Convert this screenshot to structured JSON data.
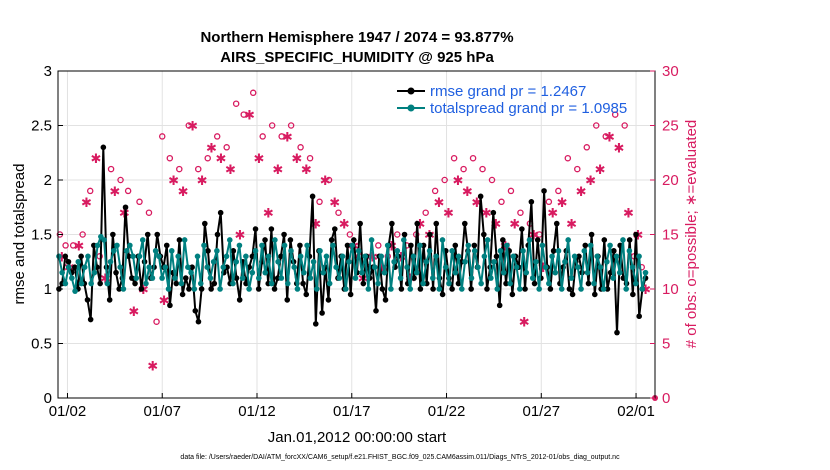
{
  "chart_data": {
    "type": "line",
    "title": "Northern Hemisphere 1947 / 2074 = 93.877%",
    "subtitle": "AIRS_SPECIFIC_HUMIDITY @ 925 hPa",
    "xlabel": "Jan.01,2012 00:00:00 start",
    "ylabel": "rmse and totalspread",
    "y2label": "# of obs: o=possible; ∗=evaluated",
    "footnote": "data file: /Users/raeder/DAI/ATM_forcXX/CAM6_setup/f.e21.FHIST_BGC.f09_025.CAM6assim.011/Diags_NTrS_2012-01/obs_diag_output.nc",
    "xlim": [
      0,
      31.5
    ],
    "ylim": [
      0,
      3
    ],
    "y2lim": [
      0,
      30
    ],
    "x_ticks": [
      0.5,
      5.5,
      10.5,
      15.5,
      20.5,
      25.5,
      30.5
    ],
    "x_ticklabels": [
      "01/02",
      "01/07",
      "01/12",
      "01/17",
      "01/22",
      "01/27",
      "02/01"
    ],
    "y_ticks": [
      0,
      0.5,
      1,
      1.5,
      2,
      2.5,
      3
    ],
    "y_ticklabels": [
      "0",
      "0.5",
      "1",
      "1.5",
      "2",
      "2.5",
      "3"
    ],
    "y2_ticks": [
      0,
      5,
      10,
      15,
      20,
      25,
      30
    ],
    "y2_ticklabels": [
      "0",
      "5",
      "10",
      "15",
      "20",
      "25",
      "30"
    ],
    "grid": true,
    "legend_position": "top-right",
    "colors": {
      "rmse": "#000000",
      "spread": "#008080",
      "obs": "#d81b60",
      "axis2": "#d81b60",
      "legend_text": "#1f5fe0"
    },
    "series": [
      {
        "name": "rmse grand pr = 1.2467",
        "values": [
          1.0,
          1.05,
          1.3,
          1.25,
          1.15,
          1.2,
          1.0,
          1.3,
          1.05,
          0.9,
          0.72,
          1.4,
          1.2,
          1.05,
          2.3,
          1.2,
          0.9,
          1.5,
          1.15,
          1.0,
          1.1,
          1.75,
          1.3,
          1.1,
          1.05,
          1.3,
          1.0,
          1.25,
          1.5,
          1.1,
          1.2,
          1.5,
          1.3,
          1.2,
          1.4,
          0.85,
          1.15,
          1.05,
          1.45,
          0.95,
          1.1,
          1.0,
          1.2,
          0.8,
          0.7,
          1.0,
          1.6,
          1.35,
          1.0,
          1.05,
          1.5,
          1.7,
          1.15,
          1.2,
          1.05,
          1.35,
          1.1,
          0.9,
          1.25,
          1.05,
          1.2,
          1.3,
          1.55,
          1.0,
          1.25,
          1.45,
          1.05,
          1.55,
          1.0,
          1.1,
          1.3,
          1.5,
          0.9,
          1.45,
          1.25,
          1.05,
          1.4,
          1.05,
          0.95,
          1.3,
          1.85,
          0.68,
          1.35,
          0.78,
          1.2,
          0.9,
          1.45,
          1.55,
          1.1,
          1.3,
          1.0,
          1.4,
          0.95,
          1.45,
          1.15,
          1.6,
          1.05,
          1.3,
          1.1,
          1.2,
          0.8,
          1.3,
          1.0,
          0.9,
          1.4,
          1.6,
          1.2,
          1.3,
          1.0,
          1.5,
          1.05,
          1.4,
          1.1,
          1.6,
          1.0,
          1.4,
          1.05,
          1.5,
          1.0,
          1.6,
          1.1,
          0.95,
          1.35,
          1.1,
          1.0,
          1.4,
          1.05,
          1.25,
          1.6,
          1.35,
          1.0,
          1.4,
          1.2,
          1.85,
          1.5,
          1.0,
          1.2,
          1.7,
          1.3,
          0.85,
          1.45,
          1.05,
          1.35,
          0.95,
          1.3,
          1.2,
          1.55,
          1.0,
          1.4,
          1.8,
          1.05,
          1.45,
          1.1,
          1.9,
          1.2,
          1.0,
          1.35,
          1.6,
          1.05,
          1.2,
          1.35,
          1.0,
          0.95,
          1.25,
          1.3,
          1.15,
          1.4,
          1.05,
          1.5,
          0.95,
          1.3,
          1.0,
          1.45,
          1.0,
          1.15,
          1.35,
          0.6,
          1.4,
          1.1,
          1.05,
          1.45,
          0.95,
          1.5,
          0.75,
          1.0,
          1.1
        ]
      },
      {
        "name": "totalspread grand pr = 1.0985",
        "values": [
          1.3,
          1.15,
          1.05,
          1.2,
          1.1,
          0.98,
          1.25,
          1.05,
          1.2,
          1.3,
          1.05,
          1.15,
          1.4,
          1.48,
          1.45,
          1.05,
          1.25,
          1.35,
          1.4,
          1.2,
          1.0,
          1.35,
          1.4,
          1.3,
          1.1,
          1.3,
          1.45,
          1.05,
          1.2,
          1.1,
          1.35,
          1.3,
          1.1,
          1.2,
          1.0,
          1.35,
          1.1,
          1.3,
          1.05,
          1.45,
          1.2,
          1.15,
          1.0,
          1.3,
          1.05,
          1.4,
          1.2,
          1.1,
          1.25,
          1.35,
          1.0,
          1.2,
          1.3,
          1.45,
          1.05,
          1.25,
          1.4,
          1.1,
          1.3,
          1.0,
          1.15,
          1.35,
          1.1,
          1.4,
          1.15,
          1.3,
          1.05,
          1.45,
          1.25,
          1.1,
          1.4,
          1.05,
          1.35,
          1.2,
          1.0,
          1.3,
          1.15,
          1.4,
          1.1,
          1.25,
          1.0,
          1.35,
          1.15,
          1.3,
          1.05,
          1.4,
          1.2,
          1.1,
          1.3,
          1.0,
          1.25,
          1.4,
          1.1,
          1.35,
          1.15,
          1.3,
          1.0,
          1.45,
          1.2,
          1.05,
          1.3,
          1.15,
          1.4,
          1.0,
          1.25,
          1.35,
          1.1,
          1.45,
          1.2,
          1.0,
          1.3,
          1.15,
          1.4,
          1.05,
          1.25,
          1.35,
          1.1,
          1.3,
          1.0,
          1.45,
          1.2,
          1.05,
          1.35,
          1.15,
          1.3,
          1.0,
          1.25,
          1.4,
          1.1,
          1.35,
          1.2,
          1.05,
          1.3,
          1.45,
          1.1,
          1.25,
          1.0,
          1.35,
          1.15,
          1.4,
          1.05,
          1.3,
          1.2,
          1.0,
          1.35,
          1.15,
          1.45,
          1.1,
          1.25,
          1.0,
          1.4,
          1.2,
          1.05,
          1.3,
          1.15,
          1.35,
          1.0,
          1.25,
          1.45,
          1.1,
          1.3,
          1.2,
          1.0,
          1.35,
          1.15,
          1.4,
          1.05,
          1.3,
          1.2,
          1.0,
          1.25,
          1.4,
          1.1,
          1.3,
          1.15,
          1.45,
          1.0,
          1.35,
          1.2,
          1.05,
          1.3,
          1.0,
          1.15
        ]
      }
    ],
    "obs_possible": [
      {
        "x": 0.1,
        "y": 15
      },
      {
        "x": 0.4,
        "y": 14
      },
      {
        "x": 0.8,
        "y": 14
      },
      {
        "x": 1.3,
        "y": 15
      },
      {
        "x": 1.7,
        "y": 19
      },
      {
        "x": 2.2,
        "y": 13
      },
      {
        "x": 2.8,
        "y": 21
      },
      {
        "x": 3.3,
        "y": 20
      },
      {
        "x": 3.7,
        "y": 19
      },
      {
        "x": 4.3,
        "y": 18
      },
      {
        "x": 4.8,
        "y": 17
      },
      {
        "x": 5.2,
        "y": 7
      },
      {
        "x": 5.5,
        "y": 24
      },
      {
        "x": 5.9,
        "y": 22
      },
      {
        "x": 6.4,
        "y": 21
      },
      {
        "x": 6.9,
        "y": 25
      },
      {
        "x": 7.4,
        "y": 21
      },
      {
        "x": 7.9,
        "y": 22
      },
      {
        "x": 8.4,
        "y": 24
      },
      {
        "x": 8.9,
        "y": 23
      },
      {
        "x": 9.4,
        "y": 27
      },
      {
        "x": 9.8,
        "y": 26
      },
      {
        "x": 10.3,
        "y": 28
      },
      {
        "x": 10.8,
        "y": 24
      },
      {
        "x": 11.3,
        "y": 25
      },
      {
        "x": 11.8,
        "y": 24
      },
      {
        "x": 12.3,
        "y": 25
      },
      {
        "x": 12.8,
        "y": 23
      },
      {
        "x": 13.3,
        "y": 22
      },
      {
        "x": 13.8,
        "y": 18
      },
      {
        "x": 14.3,
        "y": 20
      },
      {
        "x": 14.8,
        "y": 17
      },
      {
        "x": 15.4,
        "y": 15
      },
      {
        "x": 15.9,
        "y": 13
      },
      {
        "x": 16.4,
        "y": 12
      },
      {
        "x": 16.9,
        "y": 14
      },
      {
        "x": 17.4,
        "y": 13
      },
      {
        "x": 17.9,
        "y": 15
      },
      {
        "x": 18.4,
        "y": 14
      },
      {
        "x": 18.9,
        "y": 15
      },
      {
        "x": 19.4,
        "y": 17
      },
      {
        "x": 19.9,
        "y": 19
      },
      {
        "x": 20.4,
        "y": 20
      },
      {
        "x": 20.9,
        "y": 22
      },
      {
        "x": 21.4,
        "y": 21
      },
      {
        "x": 21.9,
        "y": 22
      },
      {
        "x": 22.4,
        "y": 21
      },
      {
        "x": 22.9,
        "y": 20
      },
      {
        "x": 23.4,
        "y": 18
      },
      {
        "x": 23.9,
        "y": 19
      },
      {
        "x": 24.4,
        "y": 17
      },
      {
        "x": 24.9,
        "y": 16
      },
      {
        "x": 25.4,
        "y": 15
      },
      {
        "x": 25.9,
        "y": 18
      },
      {
        "x": 26.4,
        "y": 19
      },
      {
        "x": 26.9,
        "y": 22
      },
      {
        "x": 27.4,
        "y": 21
      },
      {
        "x": 27.9,
        "y": 23
      },
      {
        "x": 28.4,
        "y": 25
      },
      {
        "x": 28.9,
        "y": 24
      },
      {
        "x": 29.4,
        "y": 26
      },
      {
        "x": 29.9,
        "y": 25
      },
      {
        "x": 30.4,
        "y": 13
      },
      {
        "x": 30.8,
        "y": 12
      }
    ],
    "obs_evaluated": [
      {
        "x": 0.2,
        "y": 13
      },
      {
        "x": 0.6,
        "y": 12
      },
      {
        "x": 1.1,
        "y": 14
      },
      {
        "x": 1.5,
        "y": 18
      },
      {
        "x": 2.0,
        "y": 22
      },
      {
        "x": 2.5,
        "y": 11
      },
      {
        "x": 3.0,
        "y": 19
      },
      {
        "x": 3.5,
        "y": 17
      },
      {
        "x": 4.0,
        "y": 8
      },
      {
        "x": 4.5,
        "y": 10
      },
      {
        "x": 5.0,
        "y": 3
      },
      {
        "x": 5.6,
        "y": 9
      },
      {
        "x": 6.1,
        "y": 20
      },
      {
        "x": 6.6,
        "y": 19
      },
      {
        "x": 7.1,
        "y": 25
      },
      {
        "x": 7.6,
        "y": 20
      },
      {
        "x": 8.1,
        "y": 23
      },
      {
        "x": 8.6,
        "y": 22
      },
      {
        "x": 9.1,
        "y": 21
      },
      {
        "x": 9.6,
        "y": 15
      },
      {
        "x": 10.1,
        "y": 26
      },
      {
        "x": 10.6,
        "y": 22
      },
      {
        "x": 11.1,
        "y": 17
      },
      {
        "x": 11.6,
        "y": 21
      },
      {
        "x": 12.1,
        "y": 24
      },
      {
        "x": 12.6,
        "y": 22
      },
      {
        "x": 13.1,
        "y": 21
      },
      {
        "x": 13.6,
        "y": 16
      },
      {
        "x": 14.1,
        "y": 20
      },
      {
        "x": 14.6,
        "y": 18
      },
      {
        "x": 15.1,
        "y": 16
      },
      {
        "x": 15.6,
        "y": 14
      },
      {
        "x": 16.1,
        "y": 11
      },
      {
        "x": 16.6,
        "y": 13
      },
      {
        "x": 17.1,
        "y": 12
      },
      {
        "x": 17.6,
        "y": 14
      },
      {
        "x": 18.1,
        "y": 13
      },
      {
        "x": 18.6,
        "y": 11
      },
      {
        "x": 19.1,
        "y": 16
      },
      {
        "x": 19.6,
        "y": 15
      },
      {
        "x": 20.1,
        "y": 18
      },
      {
        "x": 20.6,
        "y": 17
      },
      {
        "x": 21.1,
        "y": 20
      },
      {
        "x": 21.6,
        "y": 19
      },
      {
        "x": 22.1,
        "y": 18
      },
      {
        "x": 22.6,
        "y": 17
      },
      {
        "x": 23.1,
        "y": 16
      },
      {
        "x": 23.6,
        "y": 14
      },
      {
        "x": 24.1,
        "y": 16
      },
      {
        "x": 24.6,
        "y": 7
      },
      {
        "x": 25.1,
        "y": 15
      },
      {
        "x": 25.6,
        "y": 12
      },
      {
        "x": 26.1,
        "y": 17
      },
      {
        "x": 26.6,
        "y": 18
      },
      {
        "x": 27.1,
        "y": 16
      },
      {
        "x": 27.6,
        "y": 19
      },
      {
        "x": 28.1,
        "y": 20
      },
      {
        "x": 28.6,
        "y": 21
      },
      {
        "x": 29.1,
        "y": 24
      },
      {
        "x": 29.6,
        "y": 23
      },
      {
        "x": 30.1,
        "y": 17
      },
      {
        "x": 30.6,
        "y": 15
      },
      {
        "x": 31.0,
        "y": 10
      }
    ]
  }
}
